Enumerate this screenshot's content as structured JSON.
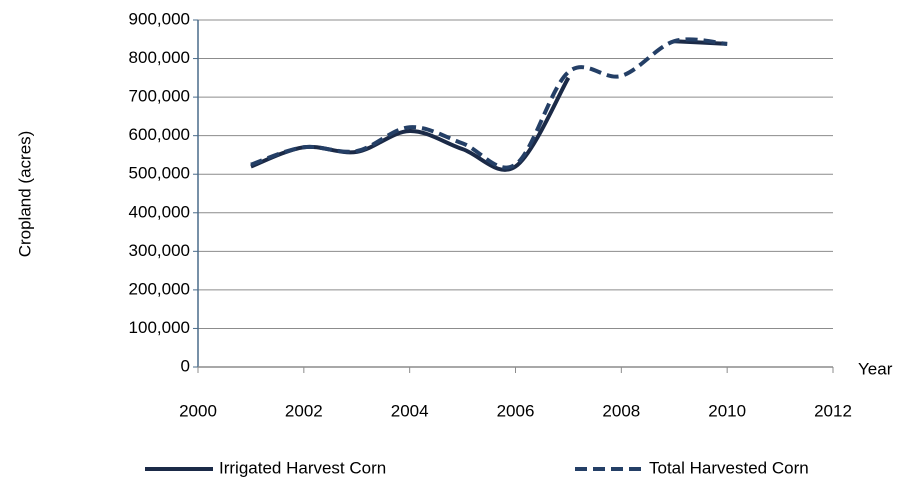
{
  "chart_data": {
    "type": "line",
    "y_label": "Cropland (acres)",
    "x_label": "Year",
    "x": [
      2001,
      2002,
      2003,
      2004,
      2005,
      2006,
      2007,
      2008,
      2009,
      2010
    ],
    "series": [
      {
        "name": "Irrigated Harvest Corn",
        "color": "#1b2a47",
        "dash": false,
        "values": [
          520000,
          570000,
          558000,
          612000,
          565000,
          520000,
          750000,
          null,
          845000,
          838000
        ]
      },
      {
        "name": "Total Harvested Corn",
        "color": "#243f66",
        "dash": true,
        "values": [
          525000,
          570000,
          560000,
          622000,
          580000,
          525000,
          765000,
          755000,
          845000,
          838000
        ]
      }
    ],
    "xlim": [
      2000,
      2012
    ],
    "xticks": [
      2000,
      2002,
      2004,
      2006,
      2008,
      2010,
      2012
    ],
    "ylim": [
      0,
      900000
    ],
    "yticks": [
      0,
      {
        "value": 100000,
        "label": "100,000"
      },
      {
        "value": 200000,
        "label": "200,000"
      },
      {
        "value": 300000,
        "label": "300,000"
      },
      {
        "value": 400000,
        "label": "400,000"
      },
      {
        "value": 500000,
        "label": "500,000"
      },
      {
        "value": 600000,
        "label": "600,000"
      },
      {
        "value": 700000,
        "label": "700,000"
      },
      {
        "value": 800000,
        "label": "800,000"
      },
      {
        "value": 900000,
        "label": "900,000"
      }
    ],
    "grid": true,
    "legend": "bottom"
  }
}
